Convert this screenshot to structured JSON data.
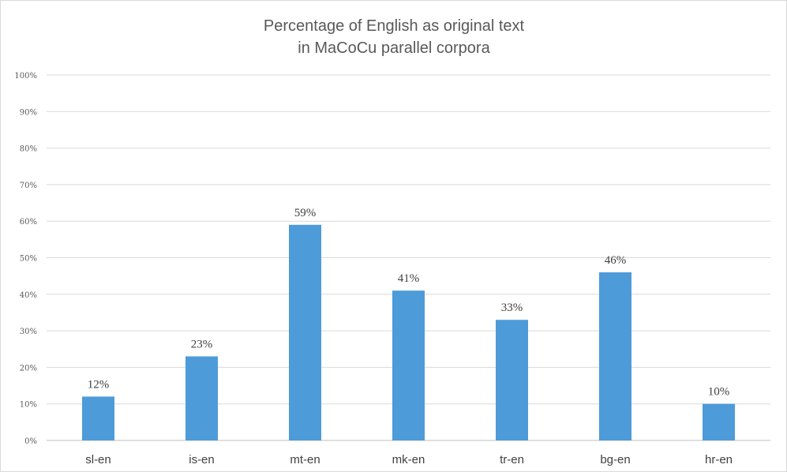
{
  "chart_data": {
    "type": "bar",
    "title": [
      "Percentage of English as original text",
      "in MaCoCu parallel corpora"
    ],
    "categories": [
      "sl-en",
      "is-en",
      "mt-en",
      "mk-en",
      "tr-en",
      "bg-en",
      "hr-en"
    ],
    "values": [
      12,
      23,
      59,
      41,
      33,
      46,
      10
    ],
    "data_labels": [
      "12%",
      "23%",
      "59%",
      "41%",
      "33%",
      "46%",
      "10%"
    ],
    "y_ticks": [
      "0%",
      "10%",
      "20%",
      "30%",
      "40%",
      "50%",
      "60%",
      "70%",
      "80%",
      "90%",
      "100%"
    ],
    "ylim": [
      0,
      100
    ],
    "grid": true,
    "legend": "none",
    "bar_color": "#4E9BD9"
  }
}
